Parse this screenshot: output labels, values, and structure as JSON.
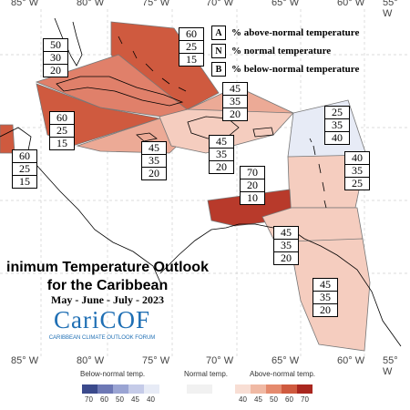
{
  "axes": {
    "top_labels": [
      "85° W",
      "80° W",
      "75° W",
      "70° W",
      "65° W",
      "60° W",
      "55° W"
    ],
    "bottom_labels": [
      "85° W",
      "80° W",
      "75° W",
      "70° W",
      "65° W",
      "60° W",
      "55° W"
    ]
  },
  "legend": {
    "items": [
      {
        "key": "A",
        "text": "% above-normal temperature"
      },
      {
        "key": "N",
        "text": "% normal temperature"
      },
      {
        "key": "B",
        "text": "% below-normal temperature"
      }
    ]
  },
  "title": {
    "line1": "inimum Temperature Outlook",
    "line2": "for the Caribbean",
    "period": "May - June - July - 2023"
  },
  "logo": {
    "name": "CariCOF",
    "subtitle": "CARIBBEAN CLIMATE OUTLOOK FORUM"
  },
  "colors": {
    "above70": "#b83a2b",
    "above60": "#cf5a3f",
    "above50": "#e0806a",
    "above45": "#ecaa96",
    "above40": "#f5cdbf",
    "normal": "#e7ebf6"
  },
  "regions": [
    {
      "id": "bahamas",
      "probs": [
        "60",
        "25",
        "15"
      ],
      "color": "above60"
    },
    {
      "id": "cuba",
      "probs": [
        "50",
        "30",
        "20"
      ],
      "color": "above50"
    },
    {
      "id": "belize",
      "probs": [
        "60",
        "25",
        "15"
      ],
      "color": "above60"
    },
    {
      "id": "cayman",
      "probs": [
        "60",
        "25",
        "15"
      ],
      "color": "above60"
    },
    {
      "id": "jamaica",
      "probs": [
        "45",
        "35",
        "20"
      ],
      "color": "above45"
    },
    {
      "id": "hispaniola",
      "probs": [
        "45",
        "35",
        "20"
      ],
      "color": "above45"
    },
    {
      "id": "northeast",
      "probs": [
        "45",
        "35",
        "20"
      ],
      "color": "above45"
    },
    {
      "id": "leeward",
      "probs": [
        "25",
        "35",
        "40"
      ],
      "color": "normal"
    },
    {
      "id": "windward",
      "probs": [
        "40",
        "35",
        "25"
      ],
      "color": "above40"
    },
    {
      "id": "abc",
      "probs": [
        "70",
        "20",
        "10"
      ],
      "color": "above70"
    },
    {
      "id": "trinidad",
      "probs": [
        "45",
        "35",
        "20"
      ],
      "color": "above45"
    },
    {
      "id": "guianas",
      "probs": [
        "45",
        "35",
        "20"
      ],
      "color": "above45"
    }
  ],
  "colorbar": {
    "below_label": "Below-normal temp.",
    "normal_label": "Normal temp.",
    "above_label": "Above-normal temp.",
    "below_ticks": [
      "70",
      "60",
      "50",
      "45",
      "40"
    ],
    "above_ticks": [
      "40",
      "45",
      "50",
      "60",
      "70"
    ]
  }
}
